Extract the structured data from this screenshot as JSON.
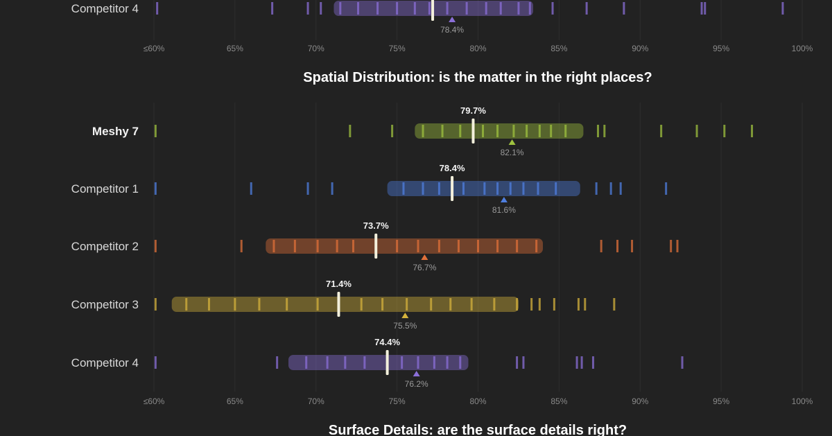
{
  "chart_data": [
    {
      "type": "strip",
      "title": "",
      "xlim": [
        60,
        100
      ],
      "xticks": [
        "≤60%",
        "65%",
        "70%",
        "75%",
        "80%",
        "85%",
        "90%",
        "95%",
        "100%"
      ],
      "rows": [
        {
          "label": "Competitor 4",
          "color": "#8b6fd8",
          "box": [
            71.1,
            83.4
          ],
          "median": 77.2,
          "mean": 78.4,
          "mean_label": "78.4%",
          "points": [
            60.2,
            67.3,
            69.5,
            70.3,
            71.5,
            72.6,
            73.8,
            75.0,
            76.1,
            77.0,
            78.1,
            79.3,
            80.5,
            81.4,
            82.5,
            83.2,
            84.6,
            86.7,
            89.0,
            93.8,
            94.0,
            98.8
          ]
        }
      ]
    },
    {
      "type": "strip",
      "title": "Spatial Distribution: is the matter in the right places?",
      "xlim": [
        60,
        100
      ],
      "xticks": [
        "≤60%",
        "65%",
        "70%",
        "75%",
        "80%",
        "85%",
        "90%",
        "95%",
        "100%"
      ],
      "rows": [
        {
          "label": "Meshy 7",
          "color": "#9fc23f",
          "box": [
            76.1,
            86.5
          ],
          "median": 79.7,
          "mean": 82.1,
          "median_label": "79.7%",
          "mean_label": "82.1%",
          "points": [
            60.1,
            72.1,
            74.7,
            76.6,
            77.8,
            78.9,
            80.3,
            81.2,
            82.2,
            83.0,
            83.8,
            84.5,
            85.4,
            87.4,
            87.8,
            91.3,
            93.5,
            95.2,
            96.9
          ]
        },
        {
          "label": "Competitor 1",
          "color": "#4f7fe0",
          "box": [
            74.4,
            86.3
          ],
          "median": 78.4,
          "mean": 81.6,
          "median_label": "78.4%",
          "mean_label": "81.6%",
          "points": [
            60.1,
            66.0,
            69.5,
            71.0,
            75.4,
            76.6,
            77.6,
            79.1,
            80.4,
            81.2,
            82.0,
            82.8,
            83.7,
            84.8,
            87.3,
            88.2,
            88.8,
            91.6
          ]
        },
        {
          "label": "Competitor 2",
          "color": "#e0703a",
          "box": [
            66.9,
            84.0
          ],
          "median": 73.7,
          "mean": 76.7,
          "median_label": "73.7%",
          "mean_label": "76.7%",
          "points": [
            60.1,
            65.4,
            67.4,
            68.7,
            70.1,
            71.3,
            72.3,
            75.0,
            76.3,
            77.6,
            78.8,
            80.0,
            81.2,
            82.4,
            83.6,
            87.6,
            88.6,
            89.5,
            91.9,
            92.3
          ]
        },
        {
          "label": "Competitor 3",
          "color": "#d4b23c",
          "box": [
            61.1,
            82.5
          ],
          "median": 71.4,
          "mean": 75.5,
          "median_label": "71.4%",
          "mean_label": "75.5%",
          "points": [
            60.1,
            62.0,
            63.4,
            65.0,
            66.5,
            68.2,
            70.1,
            72.8,
            74.1,
            75.6,
            77.1,
            78.3,
            79.6,
            81.0,
            82.4,
            83.3,
            83.8,
            84.7,
            86.2,
            86.6,
            88.4
          ]
        },
        {
          "label": "Competitor 4",
          "color": "#8b6fd8",
          "box": [
            68.3,
            79.4
          ],
          "median": 74.4,
          "mean": 76.2,
          "median_label": "74.4%",
          "mean_label": "76.2%",
          "points": [
            60.1,
            67.6,
            69.4,
            70.7,
            71.8,
            73.0,
            75.3,
            76.3,
            77.3,
            78.1,
            78.9,
            82.4,
            82.8,
            86.1,
            86.4,
            87.1,
            92.6
          ]
        }
      ]
    }
  ],
  "next_title": "Surface Details: are the surface details right?"
}
